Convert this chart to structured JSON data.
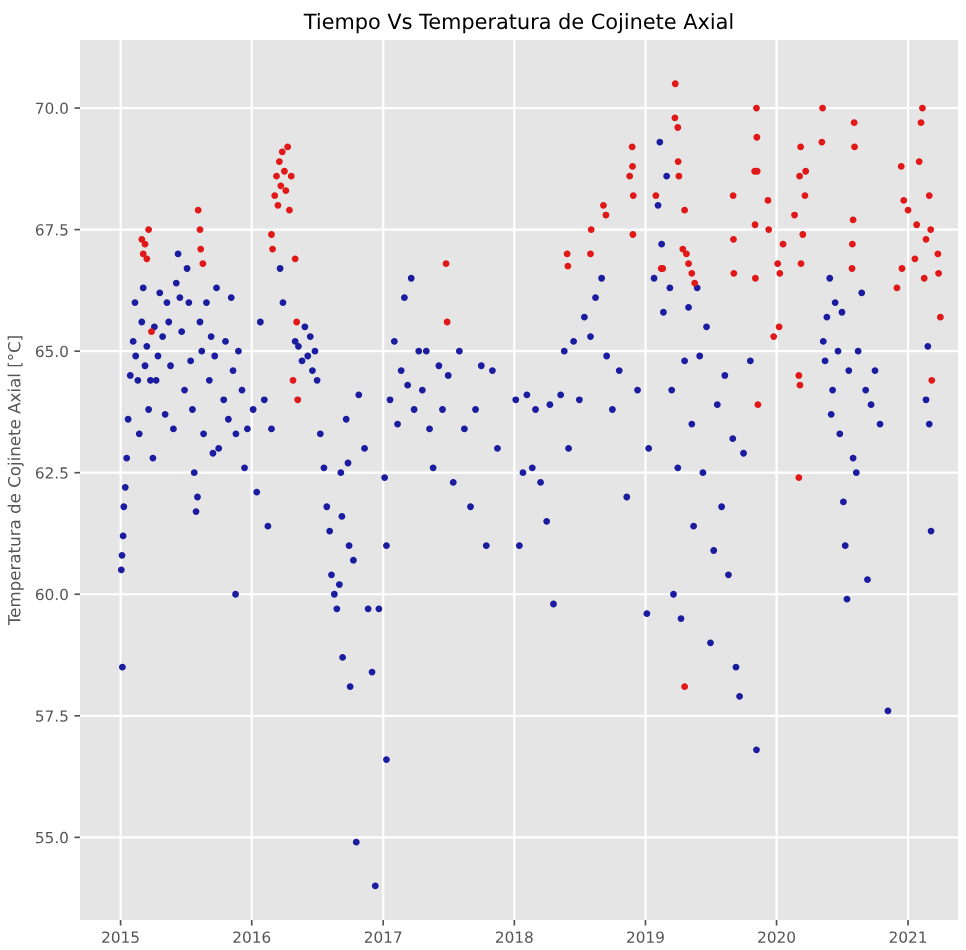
{
  "chart_data": {
    "type": "scatter",
    "title": "Tiempo Vs Temperatura de Cojinete Axial",
    "ylabel": "Temperatura de Cojinete Axial [°C]",
    "xlim": [
      "2014-09-10",
      "2021-05-20"
    ],
    "xticks": [
      "2015",
      "2016",
      "2017",
      "2018",
      "2019",
      "2020",
      "2021"
    ],
    "ylim": [
      53.3,
      71.4
    ],
    "yticks": [
      {
        "value": 55,
        "label": "55.0"
      },
      {
        "value": 57.5,
        "label": "57.5"
      },
      {
        "value": 60,
        "label": "60.0"
      },
      {
        "value": 62.5,
        "label": "62.5"
      },
      {
        "value": 65,
        "label": "65.0"
      },
      {
        "value": 67.5,
        "label": "67.5"
      },
      {
        "value": 70,
        "label": "70.0"
      }
    ],
    "grid": true,
    "marker": "circle",
    "series": [
      {
        "color": "#1c1ca0",
        "x": [
          "2015-01-06",
          "2015-01-03",
          "2015-01-05",
          "2015-01-08",
          "2015-01-10",
          "2015-01-14",
          "2015-01-18",
          "2015-01-22",
          "2015-01-28",
          "2015-02-05",
          "2015-02-10",
          "2015-02-12",
          "2015-02-18",
          "2015-02-22",
          "2015-03-01",
          "2015-03-05",
          "2015-03-10",
          "2015-03-15",
          "2015-03-20",
          "2015-03-25",
          "2015-04-01",
          "2015-04-05",
          "2015-04-10",
          "2015-04-15",
          "2015-04-20",
          "2015-04-28",
          "2015-05-05",
          "2015-05-10",
          "2015-05-15",
          "2015-05-20",
          "2015-05-28",
          "2015-06-05",
          "2015-06-10",
          "2015-06-15",
          "2015-06-20",
          "2015-06-28",
          "2015-07-05",
          "2015-07-10",
          "2015-07-15",
          "2015-07-20",
          "2015-07-25",
          "2015-07-30",
          "2015-08-03",
          "2015-08-10",
          "2015-08-15",
          "2015-08-20",
          "2015-08-28",
          "2015-09-05",
          "2015-09-10",
          "2015-09-15",
          "2015-09-20",
          "2015-09-25",
          "2015-10-01",
          "2015-11-17",
          "2015-10-15",
          "2015-10-20",
          "2015-10-28",
          "2015-11-05",
          "2015-11-10",
          "2015-11-18",
          "2015-11-25",
          "2015-12-05",
          "2015-12-12",
          "2015-12-20",
          "2016-01-05",
          "2016-01-15",
          "2016-01-25",
          "2016-02-05",
          "2016-02-15",
          "2016-02-25",
          "2016-03-20",
          "2016-03-28",
          "2016-05-01",
          "2016-05-10",
          "2016-05-20",
          "2016-05-28",
          "2016-06-05",
          "2016-06-12",
          "2016-06-18",
          "2016-06-25",
          "2016-07-01",
          "2016-07-10",
          "2016-07-20",
          "2016-07-28",
          "2016-08-05",
          "2016-08-10",
          "2016-08-18",
          "2016-08-25",
          "2016-09-01",
          "2016-09-10",
          "2016-09-05",
          "2016-09-08",
          "2016-09-20",
          "2016-09-25",
          "2016-09-28",
          "2016-10-01",
          "2016-10-10",
          "2016-10-18",
          "2016-10-25",
          "2016-11-10",
          "2016-11-20",
          "2016-12-01",
          "2016-12-10",
          "2016-12-20",
          "2017-01-10",
          "2017-01-05",
          "2017-01-10",
          "2017-01-20",
          "2017-02-01",
          "2017-02-10",
          "2017-02-20",
          "2017-03-01",
          "2017-03-10",
          "2017-03-20",
          "2017-03-28",
          "2017-04-10",
          "2017-04-20",
          "2017-05-01",
          "2017-05-10",
          "2017-05-20",
          "2017-06-05",
          "2017-06-15",
          "2017-07-01",
          "2017-07-15",
          "2017-08-01",
          "2017-08-15",
          "2017-09-01",
          "2017-09-15",
          "2017-10-01",
          "2017-10-15",
          "2017-11-01",
          "2017-11-15",
          "2018-01-05",
          "2018-01-15",
          "2018-01-25",
          "2018-02-05",
          "2018-02-20",
          "2018-03-01",
          "2018-03-15",
          "2018-04-01",
          "2018-04-10",
          "2018-04-20",
          "2018-05-10",
          "2018-05-20",
          "2018-06-01",
          "2018-06-15",
          "2018-07-01",
          "2018-07-15",
          "2018-08-01",
          "2018-08-15",
          "2018-09-01",
          "2018-09-15",
          "2018-10-01",
          "2018-10-20",
          "2018-11-10",
          "2018-12-10",
          "2019-01-05",
          "2019-01-10",
          "2019-01-25",
          "2019-02-05",
          "2019-02-10",
          "2019-02-15",
          "2019-02-20",
          "2019-03-01",
          "2019-03-10",
          "2019-03-15",
          "2019-03-20",
          "2019-04-01",
          "2019-04-10",
          "2019-04-20",
          "2019-05-01",
          "2019-05-10",
          "2019-05-15",
          "2019-05-25",
          "2019-06-01",
          "2019-06-10",
          "2019-06-20",
          "2019-07-01",
          "2019-07-10",
          "2019-07-20",
          "2019-08-01",
          "2019-08-10",
          "2019-08-20",
          "2019-09-01",
          "2019-09-10",
          "2019-09-20",
          "2019-10-01",
          "2019-10-20",
          "2019-11-06",
          "2020-05-10",
          "2020-05-15",
          "2020-05-20",
          "2020-05-28",
          "2020-06-05",
          "2020-06-12",
          "2020-06-20",
          "2020-06-01",
          "2020-06-25",
          "2020-07-01",
          "2020-07-20",
          "2020-07-05",
          "2020-07-10",
          "2020-07-15",
          "2020-08-01",
          "2020-08-10",
          "2020-08-15",
          "2020-08-25",
          "2020-09-05",
          "2020-09-10",
          "2020-09-20",
          "2020-10-01",
          "2020-10-15",
          "2020-11-06",
          "2021-03-06",
          "2021-03-01",
          "2021-02-25",
          "2021-02-20"
        ],
        "values": [
          58.5,
          60.5,
          60.8,
          61.2,
          61.8,
          62.2,
          62.8,
          63.6,
          64.5,
          65.2,
          66.0,
          64.9,
          64.4,
          63.3,
          65.6,
          66.3,
          64.7,
          65.1,
          63.8,
          64.4,
          62.8,
          65.5,
          64.4,
          64.9,
          66.2,
          65.3,
          63.7,
          66.0,
          65.6,
          64.7,
          63.4,
          66.4,
          67.0,
          66.1,
          65.4,
          64.2,
          66.7,
          66.0,
          64.8,
          63.8,
          62.5,
          61.7,
          62.0,
          65.6,
          65.0,
          63.3,
          66.0,
          64.4,
          65.3,
          62.9,
          64.9,
          66.3,
          63.0,
          60.0,
          64.0,
          65.2,
          63.6,
          66.1,
          64.6,
          63.3,
          65.0,
          64.2,
          62.6,
          63.4,
          63.8,
          62.1,
          65.6,
          64.0,
          61.4,
          63.4,
          66.7,
          66.0,
          65.2,
          65.1,
          64.8,
          65.5,
          64.9,
          65.3,
          64.6,
          65.0,
          64.4,
          63.3,
          62.6,
          61.8,
          61.3,
          60.4,
          60.0,
          59.7,
          60.2,
          58.7,
          62.5,
          61.6,
          63.6,
          62.7,
          61.0,
          58.1,
          60.7,
          54.9,
          64.1,
          63.0,
          59.7,
          58.4,
          54.0,
          59.7,
          56.6,
          62.4,
          61.0,
          64.0,
          65.2,
          63.5,
          64.6,
          66.1,
          64.3,
          66.5,
          63.8,
          65.0,
          64.2,
          65.0,
          63.4,
          62.6,
          64.7,
          63.8,
          64.5,
          62.3,
          65.0,
          63.4,
          61.8,
          63.8,
          64.7,
          61.0,
          64.6,
          63.0,
          64.0,
          61.0,
          62.5,
          64.1,
          62.6,
          63.8,
          62.3,
          61.5,
          63.9,
          59.8,
          64.1,
          65.0,
          63.0,
          65.2,
          64.0,
          65.7,
          65.3,
          66.1,
          66.5,
          64.9,
          63.8,
          64.6,
          62.0,
          64.2,
          59.6,
          63.0,
          66.5,
          68.0,
          69.3,
          67.2,
          65.8,
          68.6,
          66.3,
          64.2,
          60.0,
          62.6,
          59.5,
          64.8,
          65.9,
          63.5,
          61.4,
          66.3,
          64.9,
          62.5,
          65.5,
          59.0,
          60.9,
          63.9,
          61.8,
          64.5,
          60.4,
          63.2,
          58.5,
          57.9,
          62.9,
          64.8,
          56.8,
          65.2,
          64.8,
          65.7,
          66.5,
          64.2,
          66.0,
          65.0,
          63.7,
          63.3,
          65.8,
          64.6,
          61.9,
          61.0,
          59.9,
          62.8,
          62.5,
          65.0,
          66.2,
          64.2,
          60.3,
          63.9,
          64.6,
          63.5,
          57.6,
          61.3,
          63.5,
          65.1,
          64.0
        ]
      },
      {
        "color": "#e01818",
        "x": [
          "2015-03-01",
          "2015-03-05",
          "2015-03-10",
          "2015-03-15",
          "2015-03-20",
          "2015-03-28",
          "2015-08-05",
          "2015-08-10",
          "2015-08-12",
          "2015-08-18",
          "2016-03-05",
          "2016-03-10",
          "2016-03-14",
          "2016-03-18",
          "2016-03-22",
          "2016-03-26",
          "2016-04-01",
          "2016-04-05",
          "2016-04-10",
          "2016-04-15",
          "2016-04-20",
          "2016-02-25",
          "2016-02-28",
          "2016-05-01",
          "2016-05-05",
          "2016-04-25",
          "2016-05-08",
          "2017-06-25",
          "2017-06-28",
          "2018-05-28",
          "2018-05-30",
          "2018-08-03",
          "2018-08-01",
          "2018-09-06",
          "2018-09-13",
          "2018-11-18",
          "2018-11-28",
          "2018-11-25",
          "2018-11-26",
          "2018-11-27",
          "2019-03-25",
          "2019-03-24",
          "2019-04-01",
          "2019-04-02",
          "2019-04-04",
          "2019-04-20",
          "2019-01-30",
          "2019-02-18",
          "2019-02-14",
          "2019-04-15",
          "2019-04-25",
          "2019-05-01",
          "2019-05-10",
          "2019-05-18",
          "2019-09-02",
          "2019-09-03",
          "2019-09-04",
          "2019-04-20",
          "2019-11-06",
          "2019-11-07",
          "2019-11-08",
          "2019-11-01",
          "2019-11-02",
          "2019-11-03",
          "2019-12-08",
          "2019-12-10",
          "2020-01-04",
          "2020-01-10",
          "2020-01-19",
          "2020-02-20",
          "2020-03-05",
          "2020-03-08",
          "2020-03-20",
          "2020-03-14",
          "2020-05-08",
          "2020-05-06",
          "2020-03-22",
          "2020-03-09",
          "2020-03-03",
          "2020-03-06",
          "2020-03-03",
          "2019-12-24",
          "2020-01-08",
          "2019-11-10",
          "2020-08-04",
          "2020-08-05",
          "2020-08-01",
          "2020-07-30",
          "2020-07-29",
          "2020-12-13",
          "2020-12-20",
          "2021-01-01",
          "2021-02-06",
          "2021-02-10",
          "2021-02-01",
          "2021-01-25",
          "2021-02-20",
          "2021-03-01",
          "2021-03-05",
          "2021-03-25",
          "2021-03-27",
          "2021-04-01",
          "2021-03-08",
          "2020-12-01",
          "2020-12-15",
          "2021-01-20",
          "2021-02-15"
        ],
        "values": [
          67.3,
          67.0,
          67.2,
          66.9,
          67.5,
          65.4,
          67.9,
          67.5,
          67.1,
          66.8,
          68.2,
          68.6,
          68.0,
          68.9,
          68.4,
          69.1,
          68.7,
          68.3,
          69.2,
          67.9,
          68.6,
          67.4,
          67.1,
          66.9,
          65.6,
          64.4,
          64.0,
          66.8,
          65.6,
          67.0,
          66.75,
          67.5,
          67.0,
          68.0,
          67.8,
          68.6,
          68.2,
          69.2,
          68.8,
          67.4,
          70.5,
          69.8,
          69.6,
          68.9,
          68.6,
          67.9,
          68.2,
          66.7,
          66.7,
          67.1,
          67.0,
          66.8,
          66.6,
          66.4,
          68.2,
          67.3,
          66.6,
          58.1,
          70.0,
          69.4,
          68.7,
          68.7,
          67.6,
          66.5,
          68.1,
          67.5,
          66.8,
          66.6,
          67.2,
          67.8,
          68.6,
          69.2,
          68.2,
          67.4,
          70.0,
          69.3,
          68.7,
          66.8,
          64.5,
          64.3,
          62.4,
          65.3,
          65.5,
          63.9,
          69.7,
          69.2,
          67.7,
          67.2,
          66.7,
          68.8,
          68.1,
          67.9,
          69.7,
          70.0,
          68.9,
          67.6,
          67.3,
          68.2,
          67.5,
          67.0,
          66.6,
          65.7,
          64.4,
          66.3,
          66.7,
          66.9,
          66.5
        ]
      }
    ]
  }
}
